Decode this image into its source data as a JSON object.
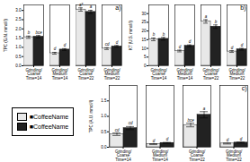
{
  "chart_data": [
    {
      "type": "bar",
      "title": "a)",
      "ylabel": "TPC (G.N. mmol/l)",
      "categories": [
        "Grinding/Coarse\nTime=14",
        "Grinding/Medium\nTime=14",
        "Grinding/Coarse\nTime=22",
        "Grinding/Medium\nTime=22"
      ],
      "series": [
        {
          "name": "■CoffeeName",
          "color": "#e8e8e8",
          "values": [
            1.55,
            0.68,
            3.05,
            0.93
          ],
          "errors": [
            0.06,
            0.05,
            0.09,
            0.05
          ],
          "annotations": [
            "b",
            "d",
            "a*",
            "cd"
          ]
        },
        {
          "name": "■CoffeeName",
          "color": "#222222",
          "values": [
            1.58,
            0.88,
            2.92,
            1.05
          ],
          "errors": [
            0.06,
            0.05,
            0.09,
            0.05
          ],
          "annotations": [
            "bce",
            "d",
            "a",
            "d"
          ]
        }
      ],
      "ylim": [
        0,
        3.3
      ],
      "yticks": [
        {
          "value": 0,
          "label": "0.0"
        },
        0.5,
        {
          "value": 1.0,
          "label": "1.0"
        },
        1.5,
        {
          "value": 2.0,
          "label": "2.0"
        },
        2.5,
        {
          "value": 3.0,
          "label": "3.0"
        }
      ],
      "grid": false
    },
    {
      "type": "bar",
      "title": "b)",
      "ylabel": "KT (U.S. mmol/l)",
      "categories": [
        "Grinding/Coarse\nTime=14",
        "Grinding/Medium\nTime=14",
        "Grinding/Coarse\nTime=22",
        "Grinding/Medium\nTime=22"
      ],
      "series": [
        {
          "name": "■CoffeeName",
          "color": "#e8e8e8",
          "values": [
            15.2,
            8.5,
            25.5,
            8.2
          ],
          "errors": [
            0.8,
            0.5,
            1.0,
            0.5
          ],
          "annotations": [
            "b",
            "d",
            "a",
            "d"
          ]
        },
        {
          "name": "■CoffeeName",
          "color": "#222222",
          "values": [
            15.5,
            11.5,
            22.5,
            9.5
          ],
          "errors": [
            0.8,
            0.5,
            1.0,
            0.5
          ],
          "annotations": [
            "b",
            "d",
            "b",
            "d"
          ]
        }
      ],
      "ylim": [
        0,
        35
      ],
      "yticks": [
        0,
        5,
        10,
        15,
        20,
        25,
        30
      ],
      "grid": false
    },
    {
      "type": "bar",
      "title": "c)",
      "ylabel": "TPC (A.U. mmol/l)",
      "categories": [
        "Grinding/Coarse\nTime=14",
        "Grinding/Medium\nTime=14",
        "Grinding/Coarse\nTime=22",
        "Grinding/Medium\nTime=22"
      ],
      "series": [
        {
          "name": "■CoffeeName",
          "color": "#e8e8e8",
          "values": [
            0.42,
            0.1,
            0.72,
            0.12
          ],
          "errors": [
            0.04,
            0.015,
            0.06,
            0.015
          ],
          "annotations": [
            "cd",
            "d",
            "bce",
            "d"
          ]
        },
        {
          "name": "■CoffeeName",
          "color": "#222222",
          "values": [
            0.62,
            0.14,
            1.05,
            0.15
          ],
          "errors": [
            0.05,
            0.015,
            0.1,
            0.015
          ],
          "annotations": [
            "cd",
            "d",
            "a",
            "d"
          ]
        }
      ],
      "ylim": [
        0,
        2.0
      ],
      "yticks": [
        {
          "value": 0,
          "label": "0.0"
        },
        0.5,
        {
          "value": 1.0,
          "label": "1.0"
        },
        1.5
      ],
      "grid": false,
      "legend": "left"
    }
  ]
}
